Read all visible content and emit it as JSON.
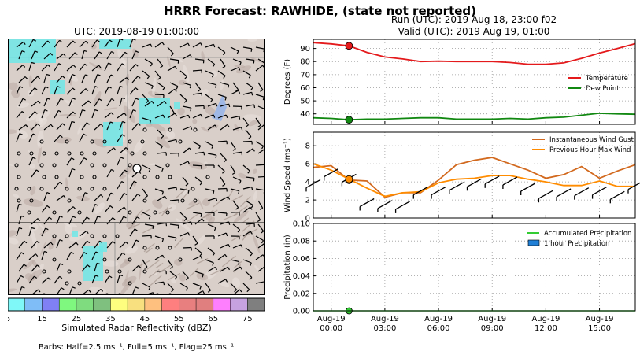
{
  "title": "HRRR Forecast: RAWHIDE, (state not reported)",
  "map": {
    "title": "UTC: 2019-08-19 01:00:00",
    "colorbar": {
      "label": "Simulated Radar Reflectivity (dBZ)",
      "ticks": [
        "5",
        "15",
        "25",
        "35",
        "45",
        "55",
        "65",
        "75"
      ],
      "colors": [
        "#7ff8f8",
        "#7fbdf7",
        "#8080f4",
        "#7ff87f",
        "#7fdc7f",
        "#7fc07f",
        "#fefe7f",
        "#f8e07f",
        "#fec07f",
        "#fe7f7f",
        "#e87f7f",
        "#e07f7f",
        "#fe7ffe",
        "#c7a2e0",
        "#7f7f7f"
      ]
    },
    "barbs_note": "Barbs: Half=2.5 ms⁻¹, Full=5 ms⁻¹, Flag=25 ms⁻¹"
  },
  "run_line": "Run (UTC): 2019 Aug 18, 23:00 f02",
  "valid_line": "Valid (UTC): 2019 Aug 19, 01:00",
  "x_ticks": [
    {
      "hours": 0,
      "line1": "Aug-19",
      "line2": "00:00"
    },
    {
      "hours": 3,
      "line1": "Aug-19",
      "line2": "03:00"
    },
    {
      "hours": 6,
      "line1": "Aug-19",
      "line2": "06:00"
    },
    {
      "hours": 9,
      "line1": "Aug-19",
      "line2": "09:00"
    },
    {
      "hours": 12,
      "line1": "Aug-19",
      "line2": "12:00"
    },
    {
      "hours": 15,
      "line1": "Aug-19",
      "line2": "15:00"
    }
  ],
  "chart_data": [
    {
      "type": "line",
      "ylabel": "Degrees (F)",
      "ylim": [
        32,
        97
      ],
      "yticks": [
        40,
        50,
        60,
        70,
        80,
        90
      ],
      "grid": true,
      "legend": "right",
      "x": [
        "Aug-18 23:00",
        "Aug-19 00:00",
        "Aug-19 01:00",
        "Aug-19 02:00",
        "Aug-19 03:00",
        "Aug-19 04:00",
        "Aug-19 05:00",
        "Aug-19 06:00",
        "Aug-19 07:00",
        "Aug-19 08:00",
        "Aug-19 09:00",
        "Aug-19 10:00",
        "Aug-19 11:00",
        "Aug-19 12:00",
        "Aug-19 13:00",
        "Aug-19 14:00",
        "Aug-19 15:00",
        "Aug-19 16:00",
        "Aug-19 17:00"
      ],
      "series": [
        {
          "name": "Temperature",
          "color": "#e41a1c",
          "values": [
            94.5,
            93.5,
            92,
            87,
            83.5,
            82,
            80,
            80.3,
            80,
            80,
            80,
            79.3,
            78,
            78,
            79,
            82.5,
            86.5,
            90,
            93.7
          ]
        },
        {
          "name": "Dew Point",
          "color": "#118811",
          "values": [
            37,
            36.5,
            35.5,
            36,
            36,
            36.5,
            37,
            37,
            36,
            36,
            36,
            36.5,
            36,
            37,
            37.5,
            39,
            40.5,
            40,
            39.7
          ]
        }
      ],
      "marker_index": 2
    },
    {
      "type": "line",
      "ylabel": "Wind Speed (ms⁻¹)",
      "ylim": [
        0,
        9.5
      ],
      "yticks": [
        0,
        2,
        4,
        6,
        8
      ],
      "grid": true,
      "legend": "top-right",
      "x": [
        "Aug-18 23:00",
        "Aug-19 00:00",
        "Aug-19 01:00",
        "Aug-19 02:00",
        "Aug-19 03:00",
        "Aug-19 04:00",
        "Aug-19 05:00",
        "Aug-19 06:00",
        "Aug-19 07:00",
        "Aug-19 08:00",
        "Aug-19 09:00",
        "Aug-19 10:00",
        "Aug-19 11:00",
        "Aug-19 12:00",
        "Aug-19 13:00",
        "Aug-19 14:00",
        "Aug-19 15:00",
        "Aug-19 16:00",
        "Aug-19 17:00"
      ],
      "series": [
        {
          "name": "Instantaneous Wind Gust",
          "color": "#d2691e",
          "values": [
            5.6,
            5.8,
            4.2,
            4.1,
            2.3,
            2.8,
            2.8,
            4.2,
            5.9,
            6.4,
            6.7,
            6.0,
            5.3,
            4.4,
            4.8,
            5.7,
            4.4,
            5.2,
            5.9
          ]
        },
        {
          "name": "Previous Hour Max Wind",
          "color": "#ff8c00",
          "values": [
            6.0,
            5.3,
            4.3,
            3.3,
            2.4,
            2.8,
            2.9,
            3.9,
            4.3,
            4.4,
            4.7,
            4.7,
            4.3,
            4.0,
            3.6,
            3.6,
            4.1,
            3.5,
            3.5
          ]
        },
        {
          "name": "Wind Barbs",
          "color": "#000000",
          "values": [
            3.8,
            5.0,
            4.4,
            1.7,
            1.5,
            1.4,
            3.0,
            3.0,
            3.5,
            3.9,
            4.2,
            4.1,
            3.4,
            2.6,
            2.8,
            2.9,
            3.0,
            2.5,
            3.6
          ]
        }
      ],
      "marker_index": 2
    },
    {
      "type": "bar",
      "ylabel": "Precipitation (in)",
      "ylim": [
        0,
        0.1
      ],
      "yticks": [
        0.0,
        0.02,
        0.04,
        0.06,
        0.08,
        0.1
      ],
      "grid": true,
      "legend": "top-right",
      "x": [
        "Aug-18 23:00",
        "Aug-19 00:00",
        "Aug-19 01:00",
        "Aug-19 02:00",
        "Aug-19 03:00",
        "Aug-19 04:00",
        "Aug-19 05:00",
        "Aug-19 06:00",
        "Aug-19 07:00",
        "Aug-19 08:00",
        "Aug-19 09:00",
        "Aug-19 10:00",
        "Aug-19 11:00",
        "Aug-19 12:00",
        "Aug-19 13:00",
        "Aug-19 14:00",
        "Aug-19 15:00",
        "Aug-19 16:00",
        "Aug-19 17:00"
      ],
      "series": [
        {
          "name": "Accumulated Precipitation",
          "color": "#33cc33",
          "values": [
            0,
            0,
            0,
            0,
            0,
            0,
            0,
            0,
            0,
            0,
            0,
            0,
            0,
            0,
            0,
            0,
            0,
            0,
            0
          ]
        },
        {
          "name": "1 hour Precipitation",
          "color": "#1f7fd6",
          "values": [
            0,
            0,
            0,
            0,
            0,
            0,
            0,
            0,
            0,
            0,
            0,
            0,
            0,
            0,
            0,
            0,
            0,
            0,
            0
          ]
        }
      ],
      "marker_index": 2
    }
  ]
}
